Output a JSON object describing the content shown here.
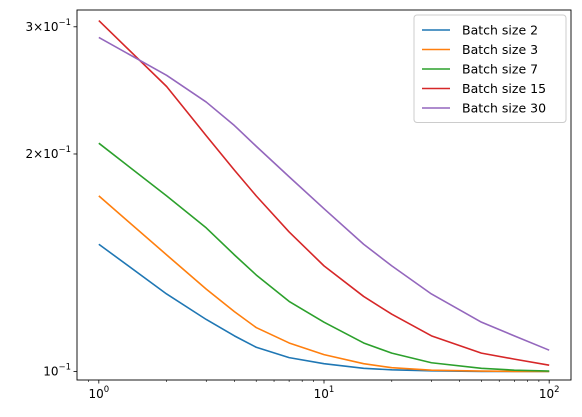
{
  "chart_data": {
    "type": "line",
    "title": "",
    "xlabel": "",
    "ylabel": "",
    "xscale": "log",
    "yscale": "log",
    "xlim": [
      0.8,
      125
    ],
    "ylim": [
      0.0973,
      0.3165
    ],
    "grid": false,
    "legend_position": "top-right",
    "x": [
      1,
      2,
      3,
      4,
      5,
      7,
      10,
      15,
      20,
      30,
      50,
      70,
      100
    ],
    "xticks": [
      {
        "value": 1,
        "base": "10",
        "exp": "0"
      },
      {
        "value": 10,
        "base": "10",
        "exp": "1"
      },
      {
        "value": 100,
        "base": "10",
        "exp": "2"
      }
    ],
    "yticks": [
      {
        "value": 0.1,
        "mant": "",
        "base": "10",
        "exp": "−1"
      },
      {
        "value": 0.2,
        "mant": "2×",
        "base": "10",
        "exp": "−1"
      },
      {
        "value": 0.3,
        "mant": "3×",
        "base": "10",
        "exp": "−1"
      }
    ],
    "series": [
      {
        "name": "Batch size 2",
        "color": "#1f77b4",
        "values": [
          0.15,
          0.128,
          0.118,
          0.112,
          0.108,
          0.1045,
          0.1025,
          0.101,
          0.1005,
          0.1002,
          0.1,
          0.1,
          0.1
        ]
      },
      {
        "name": "Batch size 3",
        "color": "#ff7f0e",
        "values": [
          0.175,
          0.145,
          0.13,
          0.121,
          0.115,
          0.1095,
          0.1055,
          0.1025,
          0.1012,
          0.1004,
          0.1001,
          0.1,
          0.1
        ]
      },
      {
        "name": "Batch size 7",
        "color": "#2ca02c",
        "values": [
          0.207,
          0.175,
          0.158,
          0.145,
          0.136,
          0.125,
          0.117,
          0.1095,
          0.106,
          0.1028,
          0.101,
          0.1004,
          0.1001
        ]
      },
      {
        "name": "Batch size 15",
        "color": "#d62728",
        "values": [
          0.306,
          0.248,
          0.212,
          0.19,
          0.175,
          0.156,
          0.14,
          0.127,
          0.12,
          0.112,
          0.106,
          0.104,
          0.102
        ]
      },
      {
        "name": "Batch size 30",
        "color": "#9467bd",
        "values": [
          0.29,
          0.257,
          0.236,
          0.219,
          0.205,
          0.186,
          0.168,
          0.15,
          0.14,
          0.128,
          0.117,
          0.112,
          0.107
        ]
      }
    ]
  }
}
